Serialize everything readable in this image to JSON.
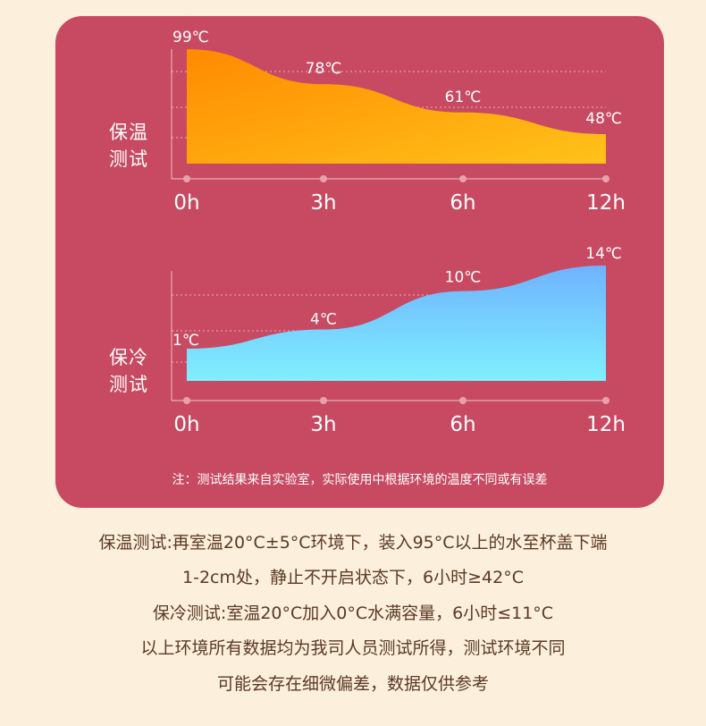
{
  "chart_data": [
    {
      "type": "area",
      "side_label_lines": [
        "保温",
        "测试"
      ],
      "categories": [
        "0h",
        "3h",
        "6h",
        "12h"
      ],
      "values": [
        99,
        78,
        61,
        48
      ],
      "data_labels": [
        "99℃",
        "78℃",
        "61℃",
        "48℃"
      ],
      "unit": "℃",
      "gradient": [
        "#ff8a00",
        "#ffc21a"
      ],
      "grid": true
    },
    {
      "type": "area",
      "side_label_lines": [
        "保冷",
        "测试"
      ],
      "categories": [
        "0h",
        "3h",
        "6h",
        "12h"
      ],
      "values": [
        1,
        4,
        10,
        14
      ],
      "data_labels": [
        "1℃",
        "4℃",
        "10℃",
        "14℃"
      ],
      "unit": "℃",
      "gradient": [
        "#6fb2ff",
        "#7ff0ff"
      ],
      "grid": true
    }
  ],
  "note": "注：测试结果来自实验室，实际使用中根据环境的温度不同或有误差",
  "description_lines": [
    "保温测试:再室温20°C±5°C环境下，装入95°C以上的水至杯盖下端",
    "1-2cm处，静止不开启状态下，6小时≥42°C",
    "保冷测试:室温20°C加入0°C水满容量，6小时≤11°C",
    "以上环境所有数据均为我司人员测试所得，测试环境不同",
    "可能会存在细微偏差，数据仅供参考"
  ],
  "colors": {
    "card": "#c84a62",
    "page": "#fcefdc",
    "text": "#5a3a25",
    "axis_dot": "#e9a0ad"
  }
}
